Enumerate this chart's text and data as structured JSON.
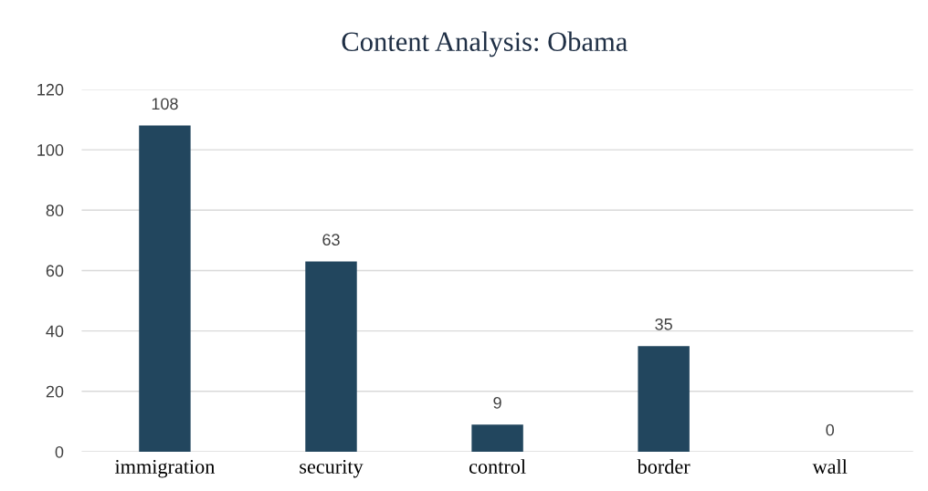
{
  "chart_data": {
    "type": "bar",
    "title": "Content Analysis: Obama",
    "categories": [
      "immigration",
      "security",
      "control",
      "border",
      "wall"
    ],
    "values": [
      108,
      63,
      9,
      35,
      0
    ],
    "color": "#22465e",
    "ylim": [
      0,
      120
    ],
    "yticks": [
      0,
      20,
      40,
      60,
      80,
      100,
      120
    ],
    "grid": "y",
    "data_labels": true
  }
}
